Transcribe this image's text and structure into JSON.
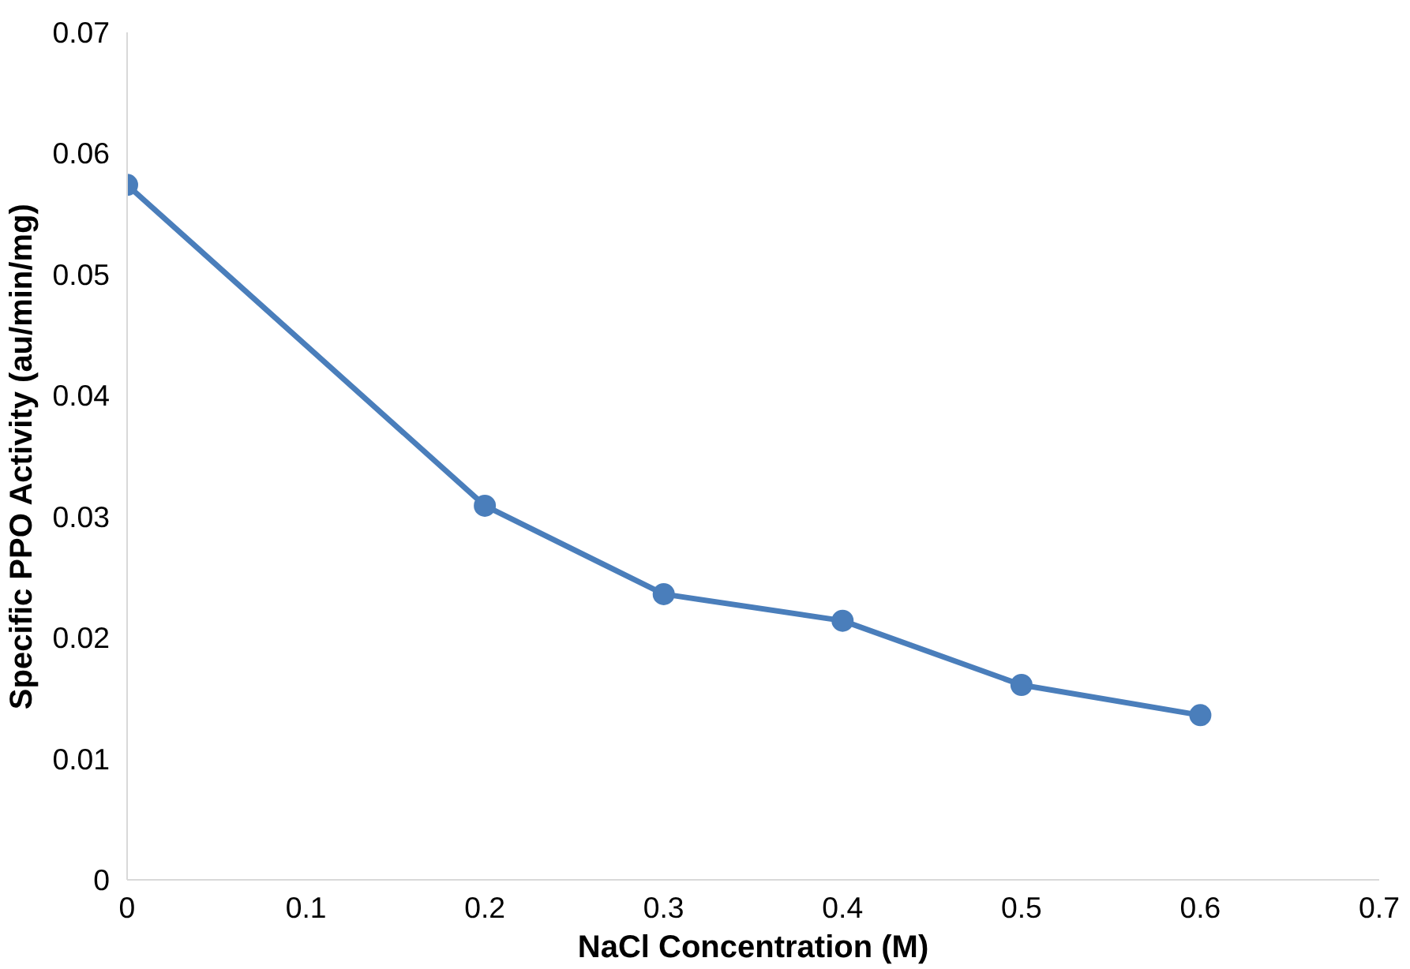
{
  "chart_data": {
    "type": "line",
    "xlabel": "NaCl Concentration (M)",
    "ylabel": "Specific PPO Activity (au/min/mg)",
    "x": [
      0,
      0.2,
      0.3,
      0.4,
      0.5,
      0.6
    ],
    "series": [
      {
        "color": "#4a7ebb",
        "values": [
          0.0574,
          0.0309,
          0.0236,
          0.0214,
          0.0161,
          0.0136
        ]
      }
    ],
    "xlim": [
      0,
      0.7
    ],
    "xticks": [
      0,
      0.1,
      0.2,
      0.3,
      0.4,
      0.5,
      0.6,
      0.7
    ],
    "ylim": [
      0,
      0.07
    ],
    "yticks": [
      0,
      0.01,
      0.02,
      0.03,
      0.04,
      0.05,
      0.06,
      0.07
    ],
    "grid": false,
    "marker": "circle",
    "line_style": "solid"
  }
}
